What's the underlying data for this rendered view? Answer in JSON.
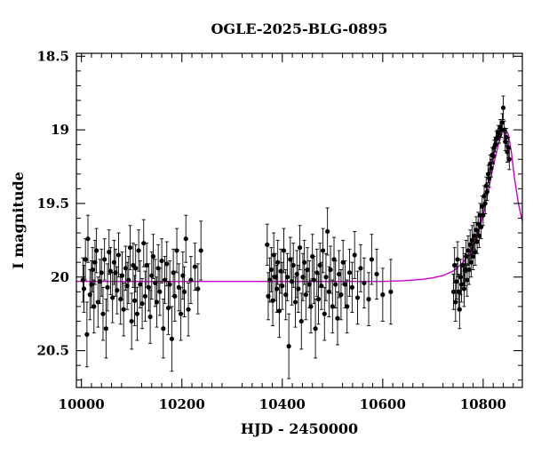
{
  "chart_data": {
    "type": "scatter",
    "title": "OGLE-2025-BLG-0895",
    "xlabel": "HJD - 2450000",
    "ylabel": "I magnitude",
    "xlim": [
      9990,
      10878
    ],
    "ylim": [
      20.75,
      18.48
    ],
    "y_inverted": true,
    "xticks": [
      10000,
      10200,
      10400,
      10600,
      10800
    ],
    "yticks": [
      18.5,
      19,
      19.5,
      20,
      20.5
    ],
    "x_tick_labels": [
      "10000",
      "10200",
      "10400",
      "10600",
      "10800"
    ],
    "y_tick_labels": [
      "18.5",
      "19",
      "19.5",
      "20",
      "20.5"
    ],
    "grid": false,
    "legend": "none",
    "colors": {
      "points": "#000000",
      "model": "#cc00cc",
      "axes": "#000000"
    },
    "series": [
      {
        "kind": "data-with-errorbars",
        "points": [
          [
            10003,
            20.02,
            0.15
          ],
          [
            10005,
            20.08,
            0.16
          ],
          [
            10008,
            19.88,
            0.14
          ],
          [
            10011,
            20.39,
            0.22
          ],
          [
            10013,
            19.74,
            0.16
          ],
          [
            10017,
            20.12,
            0.17
          ],
          [
            10020,
            20.05,
            0.16
          ],
          [
            10022,
            19.95,
            0.15
          ],
          [
            10025,
            20.2,
            0.18
          ],
          [
            10027,
            19.9,
            0.15
          ],
          [
            10030,
            19.82,
            0.15
          ],
          [
            10033,
            20.17,
            0.17
          ],
          [
            10037,
            20.03,
            0.15
          ],
          [
            10040,
            19.97,
            0.16
          ],
          [
            10043,
            20.25,
            0.18
          ],
          [
            10046,
            19.88,
            0.14
          ],
          [
            10049,
            20.35,
            0.2
          ],
          [
            10052,
            20.07,
            0.16
          ],
          [
            10055,
            19.83,
            0.15
          ],
          [
            10058,
            19.96,
            0.16
          ],
          [
            10062,
            20.14,
            0.17
          ],
          [
            10065,
            19.9,
            0.15
          ],
          [
            10068,
            19.97,
            0.16
          ],
          [
            10071,
            20.09,
            0.16
          ],
          [
            10074,
            19.85,
            0.15
          ],
          [
            10078,
            20.15,
            0.17
          ],
          [
            10081,
            19.99,
            0.16
          ],
          [
            10084,
            20.22,
            0.18
          ],
          [
            10088,
            19.94,
            0.15
          ],
          [
            10091,
            20.06,
            0.16
          ],
          [
            10094,
            20.02,
            0.16
          ],
          [
            10097,
            19.8,
            0.15
          ],
          [
            10100,
            20.3,
            0.19
          ],
          [
            10103,
            19.92,
            0.15
          ],
          [
            10106,
            20.16,
            0.17
          ],
          [
            10108,
            19.94,
            0.16
          ],
          [
            10111,
            20.25,
            0.18
          ],
          [
            10114,
            19.82,
            0.14
          ],
          [
            10117,
            20.05,
            0.16
          ],
          [
            10121,
            20.18,
            0.17
          ],
          [
            10124,
            19.77,
            0.16
          ],
          [
            10127,
            20.13,
            0.17
          ],
          [
            10130,
            19.92,
            0.15
          ],
          [
            10134,
            20.07,
            0.16
          ],
          [
            10137,
            20.27,
            0.18
          ],
          [
            10140,
            19.99,
            0.16
          ],
          [
            10143,
            19.86,
            0.15
          ],
          [
            10147,
            20.04,
            0.16
          ],
          [
            10150,
            20.17,
            0.17
          ],
          [
            10153,
            19.94,
            0.16
          ],
          [
            10156,
            20.1,
            0.16
          ],
          [
            10160,
            19.89,
            0.15
          ],
          [
            10163,
            20.35,
            0.2
          ],
          [
            10166,
            20.02,
            0.16
          ],
          [
            10170,
            19.91,
            0.15
          ],
          [
            10173,
            20.21,
            0.18
          ],
          [
            10176,
            20.05,
            0.16
          ],
          [
            10180,
            20.42,
            0.22
          ],
          [
            10183,
            19.97,
            0.16
          ],
          [
            10186,
            20.13,
            0.17
          ],
          [
            10190,
            19.82,
            0.15
          ],
          [
            10194,
            20.07,
            0.16
          ],
          [
            10198,
            20.25,
            0.18
          ],
          [
            10202,
            19.99,
            0.16
          ],
          [
            10205,
            20.1,
            0.17
          ],
          [
            10208,
            19.74,
            0.16
          ],
          [
            10213,
            20.22,
            0.18
          ],
          [
            10218,
            20.02,
            0.16
          ],
          [
            10226,
            19.93,
            0.16
          ],
          [
            10232,
            20.08,
            0.17
          ],
          [
            10238,
            19.82,
            0.2
          ],
          [
            10370,
            19.78,
            0.14
          ],
          [
            10372,
            20.13,
            0.16
          ],
          [
            10375,
            20.02,
            0.15
          ],
          [
            10378,
            19.95,
            0.15
          ],
          [
            10381,
            20.16,
            0.17
          ],
          [
            10383,
            19.85,
            0.15
          ],
          [
            10386,
            20.0,
            0.16
          ],
          [
            10389,
            20.08,
            0.16
          ],
          [
            10391,
            19.9,
            0.15
          ],
          [
            10394,
            20.23,
            0.18
          ],
          [
            10397,
            19.96,
            0.15
          ],
          [
            10400,
            20.06,
            0.16
          ],
          [
            10403,
            19.82,
            0.15
          ],
          [
            10407,
            20.12,
            0.17
          ],
          [
            10410,
            20.0,
            0.16
          ],
          [
            10413,
            20.47,
            0.22
          ],
          [
            10416,
            19.88,
            0.15
          ],
          [
            10419,
            20.03,
            0.16
          ],
          [
            10422,
            19.92,
            0.15
          ],
          [
            10426,
            20.17,
            0.17
          ],
          [
            10429,
            19.98,
            0.16
          ],
          [
            10432,
            20.08,
            0.16
          ],
          [
            10435,
            19.8,
            0.15
          ],
          [
            10438,
            20.3,
            0.19
          ],
          [
            10441,
            20.0,
            0.16
          ],
          [
            10444,
            19.9,
            0.15
          ],
          [
            10447,
            20.12,
            0.17
          ],
          [
            10450,
            19.95,
            0.15
          ],
          [
            10454,
            20.05,
            0.16
          ],
          [
            10457,
            20.2,
            0.18
          ],
          [
            10460,
            19.86,
            0.15
          ],
          [
            10463,
            20.02,
            0.16
          ],
          [
            10466,
            20.35,
            0.2
          ],
          [
            10469,
            19.97,
            0.16
          ],
          [
            10472,
            20.15,
            0.17
          ],
          [
            10475,
            19.92,
            0.15
          ],
          [
            10478,
            20.06,
            0.16
          ],
          [
            10481,
            19.82,
            0.15
          ],
          [
            10484,
            20.25,
            0.18
          ],
          [
            10487,
            20.0,
            0.16
          ],
          [
            10490,
            19.69,
            0.16
          ],
          [
            10493,
            20.1,
            0.17
          ],
          [
            10496,
            19.95,
            0.16
          ],
          [
            10500,
            20.2,
            0.18
          ],
          [
            10503,
            19.88,
            0.15
          ],
          [
            10506,
            20.05,
            0.16
          ],
          [
            10510,
            20.28,
            0.18
          ],
          [
            10513,
            19.98,
            0.16
          ],
          [
            10517,
            20.12,
            0.17
          ],
          [
            10521,
            19.9,
            0.15
          ],
          [
            10525,
            20.05,
            0.16
          ],
          [
            10529,
            20.2,
            0.18
          ],
          [
            10534,
            19.97,
            0.16
          ],
          [
            10539,
            20.07,
            0.17
          ],
          [
            10544,
            19.85,
            0.16
          ],
          [
            10550,
            20.14,
            0.18
          ],
          [
            10556,
            19.94,
            0.16
          ],
          [
            10563,
            20.04,
            0.17
          ],
          [
            10572,
            20.15,
            0.18
          ],
          [
            10578,
            19.88,
            0.17
          ],
          [
            10588,
            19.98,
            0.17
          ],
          [
            10600,
            20.12,
            0.18
          ],
          [
            10616,
            20.1,
            0.22
          ],
          [
            10741,
            20.1,
            0.12
          ],
          [
            10743,
            19.92,
            0.12
          ],
          [
            10745,
            20.17,
            0.13
          ],
          [
            10747,
            20.03,
            0.12
          ],
          [
            10749,
            19.88,
            0.12
          ],
          [
            10751,
            20.1,
            0.12
          ],
          [
            10753,
            20.22,
            0.13
          ],
          [
            10755,
            20.0,
            0.12
          ],
          [
            10757,
            20.05,
            0.12
          ],
          [
            10760,
            19.92,
            0.12
          ],
          [
            10762,
            20.08,
            0.12
          ],
          [
            10764,
            19.95,
            0.11
          ],
          [
            10766,
            19.86,
            0.11
          ],
          [
            10768,
            20.02,
            0.11
          ],
          [
            10770,
            19.82,
            0.1
          ],
          [
            10772,
            19.95,
            0.1
          ],
          [
            10774,
            19.78,
            0.1
          ],
          [
            10776,
            19.9,
            0.1
          ],
          [
            10778,
            19.75,
            0.1
          ],
          [
            10780,
            19.86,
            0.09
          ],
          [
            10782,
            19.72,
            0.09
          ],
          [
            10784,
            19.83,
            0.09
          ],
          [
            10786,
            19.68,
            0.09
          ],
          [
            10788,
            19.76,
            0.08
          ],
          [
            10790,
            19.64,
            0.08
          ],
          [
            10792,
            19.72,
            0.08
          ],
          [
            10794,
            19.58,
            0.08
          ],
          [
            10796,
            19.66,
            0.08
          ],
          [
            10798,
            19.52,
            0.07
          ],
          [
            10800,
            19.58,
            0.07
          ],
          [
            10802,
            19.45,
            0.07
          ],
          [
            10804,
            19.5,
            0.07
          ],
          [
            10806,
            19.38,
            0.06
          ],
          [
            10808,
            19.42,
            0.06
          ],
          [
            10810,
            19.3,
            0.06
          ],
          [
            10812,
            19.33,
            0.06
          ],
          [
            10814,
            19.23,
            0.06
          ],
          [
            10816,
            19.26,
            0.06
          ],
          [
            10818,
            19.17,
            0.05
          ],
          [
            10820,
            19.18,
            0.05
          ],
          [
            10822,
            19.12,
            0.05
          ],
          [
            10824,
            19.1,
            0.05
          ],
          [
            10826,
            19.06,
            0.05
          ],
          [
            10828,
            19.05,
            0.05
          ],
          [
            10830,
            19.02,
            0.05
          ],
          [
            10832,
            19.04,
            0.05
          ],
          [
            10834,
            18.98,
            0.05
          ],
          [
            10836,
            19.0,
            0.05
          ],
          [
            10838,
            18.95,
            0.06
          ],
          [
            10840,
            18.85,
            0.08
          ],
          [
            10842,
            19.0,
            0.06
          ],
          [
            10844,
            19.08,
            0.06
          ],
          [
            10846,
            19.05,
            0.06
          ],
          [
            10848,
            19.15,
            0.07
          ],
          [
            10850,
            19.12,
            0.07
          ],
          [
            10852,
            19.2,
            0.07
          ]
        ]
      },
      {
        "kind": "model-curve",
        "points": [
          [
            9990,
            20.03
          ],
          [
            10500,
            20.03
          ],
          [
            10600,
            20.03
          ],
          [
            10640,
            20.025
          ],
          [
            10680,
            20.015
          ],
          [
            10700,
            20.005
          ],
          [
            10720,
            19.99
          ],
          [
            10740,
            19.96
          ],
          [
            10760,
            19.9
          ],
          [
            10775,
            19.83
          ],
          [
            10790,
            19.7
          ],
          [
            10800,
            19.58
          ],
          [
            10810,
            19.42
          ],
          [
            10820,
            19.25
          ],
          [
            10830,
            19.1
          ],
          [
            10838,
            19.02
          ],
          [
            10844,
            18.99
          ],
          [
            10850,
            19.03
          ],
          [
            10856,
            19.15
          ],
          [
            10862,
            19.32
          ],
          [
            10870,
            19.5
          ],
          [
            10878,
            19.62
          ]
        ]
      }
    ]
  }
}
